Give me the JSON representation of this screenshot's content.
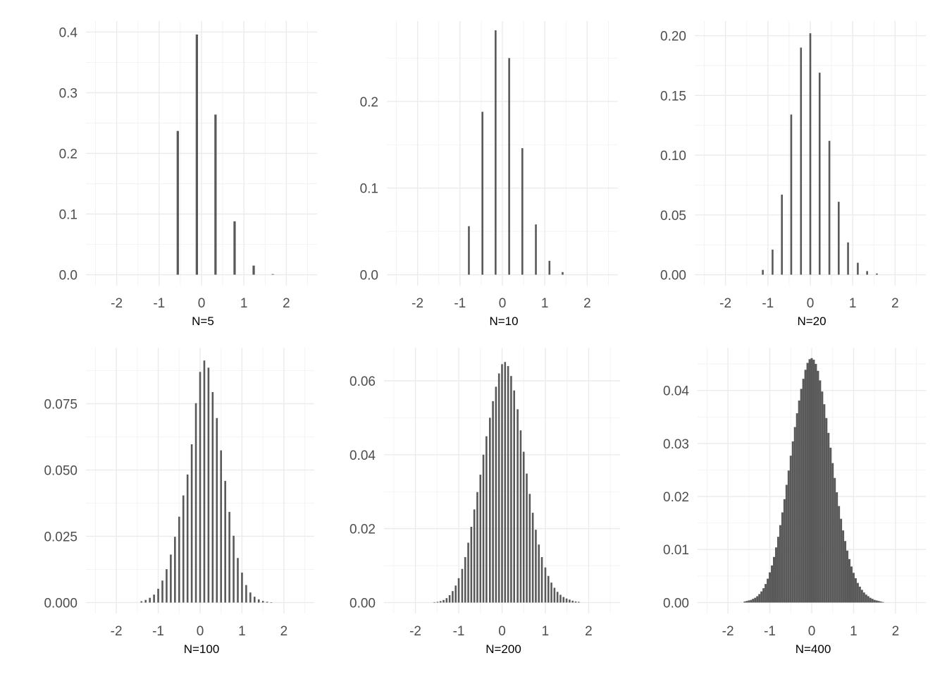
{
  "chart_data": [
    {
      "type": "bar",
      "xlabel": "N=5",
      "xlim": [
        -2.5,
        2.5
      ],
      "ylim": [
        0,
        0.4
      ],
      "x_ticks": [
        "-2",
        "-1",
        "0",
        "1",
        "2"
      ],
      "y_ticks": [
        "0.0",
        "0.1",
        "0.2",
        "0.3",
        "0.4"
      ],
      "bar_color": "#595959",
      "x": [
        -0.56,
        -0.11,
        0.33,
        0.78,
        1.23,
        1.68
      ],
      "values": [
        0.237,
        0.396,
        0.264,
        0.088,
        0.015,
        0.001
      ]
    },
    {
      "type": "bar",
      "xlabel": "N=10",
      "xlim": [
        -2.5,
        2.5
      ],
      "ylim": [
        0,
        0.28
      ],
      "x_ticks": [
        "-2",
        "-1",
        "0",
        "1",
        "2"
      ],
      "y_ticks": [
        "0.0",
        "0.1",
        "0.2"
      ],
      "bar_color": "#595959",
      "x": [
        -0.79,
        -0.47,
        -0.16,
        0.16,
        0.47,
        0.79,
        1.11,
        1.42
      ],
      "values": [
        0.056,
        0.188,
        0.282,
        0.25,
        0.146,
        0.058,
        0.016,
        0.003
      ]
    },
    {
      "type": "bar",
      "xlabel": "N=20",
      "xlim": [
        -2.5,
        2.5
      ],
      "ylim": [
        0,
        0.203
      ],
      "x_ticks": [
        "-2",
        "-1",
        "0",
        "1",
        "2"
      ],
      "y_ticks": [
        "0.00",
        "0.05",
        "0.10",
        "0.15",
        "0.20"
      ],
      "bar_color": "#595959",
      "x": [
        -1.12,
        -0.89,
        -0.67,
        -0.45,
        -0.22,
        0.0,
        0.22,
        0.45,
        0.67,
        0.89,
        1.12,
        1.34,
        1.57
      ],
      "values": [
        0.004,
        0.021,
        0.067,
        0.134,
        0.19,
        0.202,
        0.169,
        0.112,
        0.061,
        0.027,
        0.01,
        0.003,
        0.001
      ]
    },
    {
      "type": "bar",
      "xlabel": "N=100",
      "xlim": [
        -2.5,
        2.5
      ],
      "ylim": [
        0,
        0.092
      ],
      "x_ticks": [
        "-2",
        "-1",
        "0",
        "1",
        "2"
      ],
      "y_ticks": [
        "0.000",
        "0.025",
        "0.050",
        "0.075"
      ],
      "bar_color": "#595959",
      "x": [
        -1.4,
        -1.3,
        -1.2,
        -1.1,
        -1.0,
        -0.9,
        -0.8,
        -0.7,
        -0.6,
        -0.5,
        -0.4,
        -0.3,
        -0.2,
        -0.1,
        0.0,
        0.1,
        0.2,
        0.3,
        0.4,
        0.5,
        0.6,
        0.7,
        0.8,
        0.9,
        1.0,
        1.1,
        1.2,
        1.3,
        1.4,
        1.5,
        1.6,
        1.7
      ],
      "values": [
        0.0005,
        0.001,
        0.0018,
        0.003,
        0.0052,
        0.0083,
        0.0126,
        0.0181,
        0.0248,
        0.0324,
        0.0404,
        0.0483,
        0.0597,
        0.0752,
        0.087,
        0.0913,
        0.0886,
        0.0794,
        0.0696,
        0.0574,
        0.0459,
        0.0342,
        0.0252,
        0.0168,
        0.0113,
        0.0066,
        0.0038,
        0.0022,
        0.0012,
        0.0006,
        0.0003,
        0.0001
      ]
    },
    {
      "type": "bar",
      "xlabel": "N=200",
      "xlim": [
        -2.5,
        2.5
      ],
      "ylim": [
        0,
        0.066
      ],
      "x_ticks": [
        "-2",
        "-1",
        "0",
        "1",
        "2"
      ],
      "y_ticks": [
        "0.00",
        "0.02",
        "0.04",
        "0.06"
      ],
      "bar_color": "#595959",
      "x": [
        -1.56,
        -1.49,
        -1.42,
        -1.35,
        -1.28,
        -1.21,
        -1.14,
        -1.07,
        -1.0,
        -0.92,
        -0.85,
        -0.78,
        -0.71,
        -0.64,
        -0.57,
        -0.5,
        -0.43,
        -0.36,
        -0.28,
        -0.21,
        -0.14,
        -0.07,
        0.0,
        0.07,
        0.14,
        0.21,
        0.28,
        0.36,
        0.43,
        0.5,
        0.57,
        0.64,
        0.71,
        0.78,
        0.85,
        0.92,
        1.0,
        1.07,
        1.14,
        1.21,
        1.28,
        1.35,
        1.42,
        1.49,
        1.56,
        1.63,
        1.7,
        1.77
      ],
      "values": [
        0.0001,
        0.0002,
        0.0004,
        0.0007,
        0.0012,
        0.002,
        0.0031,
        0.0046,
        0.0066,
        0.0091,
        0.0123,
        0.0162,
        0.0205,
        0.0252,
        0.0299,
        0.0346,
        0.04,
        0.045,
        0.05,
        0.0545,
        0.0584,
        0.062,
        0.0645,
        0.0651,
        0.064,
        0.0613,
        0.0574,
        0.0523,
        0.0466,
        0.0408,
        0.0349,
        0.0294,
        0.0243,
        0.0197,
        0.0157,
        0.0123,
        0.0095,
        0.0072,
        0.0054,
        0.004,
        0.0029,
        0.0021,
        0.0015,
        0.0011,
        0.0008,
        0.0005,
        0.0003,
        0.0002
      ]
    },
    {
      "type": "bar",
      "xlabel": "N=400",
      "xlim": [
        -2.5,
        2.5
      ],
      "ylim": [
        0,
        0.046
      ],
      "x_ticks": [
        "-2",
        "-1",
        "0",
        "1",
        "2"
      ],
      "y_ticks": [
        "0.00",
        "0.01",
        "0.02",
        "0.03",
        "0.04"
      ],
      "bar_color": "#595959",
      "x": [
        -1.6,
        -1.55,
        -1.5,
        -1.45,
        -1.4,
        -1.35,
        -1.3,
        -1.25,
        -1.2,
        -1.15,
        -1.1,
        -1.05,
        -1.0,
        -0.95,
        -0.9,
        -0.85,
        -0.8,
        -0.75,
        -0.7,
        -0.65,
        -0.6,
        -0.55,
        -0.5,
        -0.45,
        -0.4,
        -0.35,
        -0.3,
        -0.25,
        -0.2,
        -0.15,
        -0.1,
        -0.05,
        0.0,
        0.05,
        0.1,
        0.15,
        0.2,
        0.25,
        0.3,
        0.35,
        0.4,
        0.45,
        0.5,
        0.55,
        0.6,
        0.65,
        0.7,
        0.75,
        0.8,
        0.85,
        0.9,
        0.95,
        1.0,
        1.05,
        1.1,
        1.15,
        1.2,
        1.25,
        1.3,
        1.35,
        1.4,
        1.45,
        1.5,
        1.55,
        1.6,
        1.65,
        1.7
      ],
      "values": [
        0.0002,
        0.0003,
        0.0004,
        0.0005,
        0.0007,
        0.0009,
        0.0012,
        0.0016,
        0.0021,
        0.0027,
        0.0035,
        0.0045,
        0.0057,
        0.007,
        0.0086,
        0.0104,
        0.0124,
        0.0146,
        0.017,
        0.0195,
        0.0222,
        0.0249,
        0.0277,
        0.0304,
        0.0331,
        0.0357,
        0.0381,
        0.0403,
        0.0422,
        0.0439,
        0.0452,
        0.0459,
        0.0461,
        0.0458,
        0.045,
        0.0437,
        0.0419,
        0.0398,
        0.0374,
        0.0348,
        0.032,
        0.0292,
        0.0263,
        0.0235,
        0.0208,
        0.0182,
        0.0158,
        0.0136,
        0.0116,
        0.0098,
        0.0082,
        0.0068,
        0.0056,
        0.0046,
        0.0037,
        0.003,
        0.0024,
        0.0019,
        0.0015,
        0.0012,
        0.0009,
        0.0007,
        0.0005,
        0.0004,
        0.0003,
        0.0002,
        0.0001
      ]
    }
  ]
}
